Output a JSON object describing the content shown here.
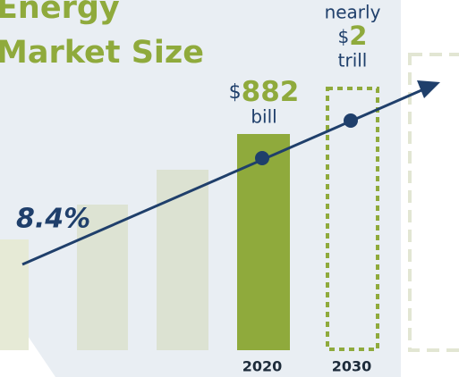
{
  "title": [
    "Energy",
    "Market Size"
  ],
  "growth": "8.4%",
  "current": {
    "currency": "$",
    "amount": "882",
    "unit": "bill",
    "year": "2020"
  },
  "future": {
    "prefix": "nearly",
    "currency": "$",
    "amount": "2",
    "unit": "trill",
    "year": "2030"
  }
}
